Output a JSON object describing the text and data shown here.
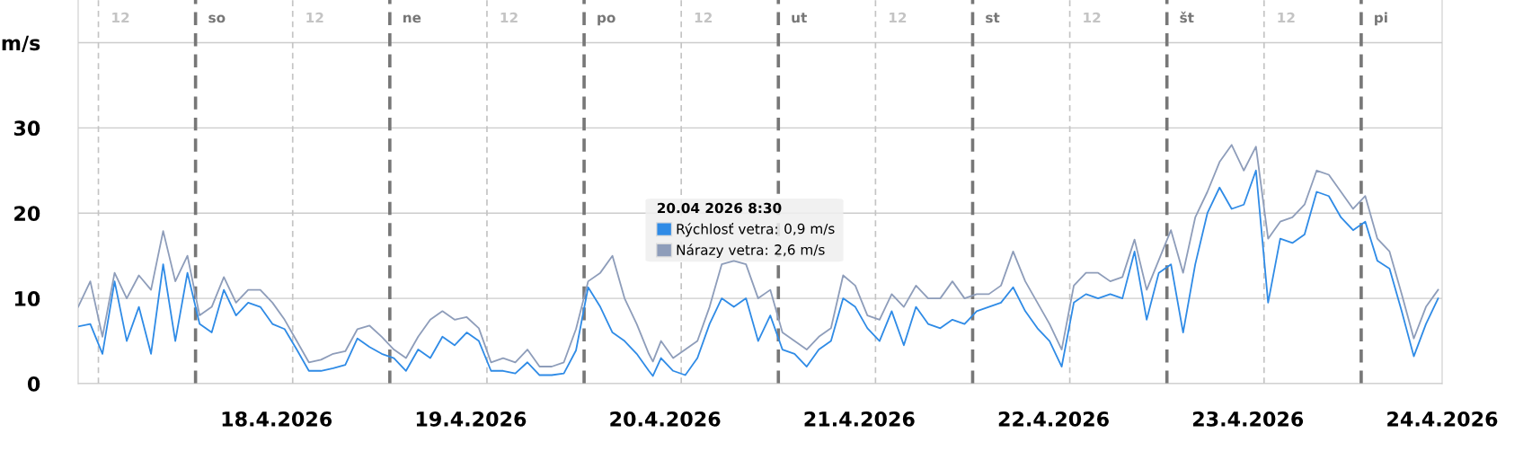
{
  "chart_data": {
    "type": "line",
    "x": [
      "2026-04-17T09:30",
      "2026-04-17T11:00",
      "2026-04-17T12:30",
      "2026-04-17T14:00",
      "2026-04-17T15:30",
      "2026-04-17T17:00",
      "2026-04-17T18:30",
      "2026-04-17T20:00",
      "2026-04-17T21:30",
      "2026-04-17T23:00",
      "2026-04-18T00:30",
      "2026-04-18T02:00",
      "2026-04-18T03:30",
      "2026-04-18T05:00",
      "2026-04-18T06:30",
      "2026-04-18T08:00",
      "2026-04-18T09:30",
      "2026-04-18T11:00",
      "2026-04-18T12:30",
      "2026-04-18T14:00",
      "2026-04-18T15:30",
      "2026-04-18T17:00",
      "2026-04-18T18:30",
      "2026-04-18T20:00",
      "2026-04-18T21:30",
      "2026-04-18T23:00",
      "2026-04-19T00:30",
      "2026-04-19T02:00",
      "2026-04-19T03:30",
      "2026-04-19T05:00",
      "2026-04-19T06:30",
      "2026-04-19T08:00",
      "2026-04-19T09:30",
      "2026-04-19T11:00",
      "2026-04-19T12:30",
      "2026-04-19T14:00",
      "2026-04-19T15:30",
      "2026-04-19T17:00",
      "2026-04-19T18:30",
      "2026-04-19T20:00",
      "2026-04-19T21:30",
      "2026-04-19T23:00",
      "2026-04-20T00:30",
      "2026-04-20T02:00",
      "2026-04-20T03:30",
      "2026-04-20T05:00",
      "2026-04-20T06:30",
      "2026-04-20T08:00",
      "2026-04-20T08:30",
      "2026-04-20T09:30",
      "2026-04-20T11:00",
      "2026-04-20T12:30",
      "2026-04-20T14:00",
      "2026-04-20T15:30",
      "2026-04-20T17:00",
      "2026-04-20T18:30",
      "2026-04-20T20:00",
      "2026-04-20T21:30",
      "2026-04-20T23:00",
      "2026-04-21T00:30",
      "2026-04-21T02:00",
      "2026-04-21T03:30",
      "2026-04-21T05:00",
      "2026-04-21T06:30",
      "2026-04-21T08:00",
      "2026-04-21T09:30",
      "2026-04-21T11:00",
      "2026-04-21T12:30",
      "2026-04-21T14:00",
      "2026-04-21T15:30",
      "2026-04-21T17:00",
      "2026-04-21T18:30",
      "2026-04-21T20:00",
      "2026-04-21T21:30",
      "2026-04-21T23:00",
      "2026-04-22T00:30",
      "2026-04-22T02:00",
      "2026-04-22T03:30",
      "2026-04-22T05:00",
      "2026-04-22T06:30",
      "2026-04-22T08:00",
      "2026-04-22T09:30",
      "2026-04-22T11:00",
      "2026-04-22T12:30",
      "2026-04-22T14:00",
      "2026-04-22T15:30",
      "2026-04-22T17:00",
      "2026-04-22T18:30",
      "2026-04-22T20:00",
      "2026-04-22T21:30",
      "2026-04-22T23:00",
      "2026-04-23T00:30",
      "2026-04-23T02:00",
      "2026-04-23T03:30",
      "2026-04-23T05:00",
      "2026-04-23T06:30",
      "2026-04-23T08:00",
      "2026-04-23T09:30",
      "2026-04-23T11:00",
      "2026-04-23T12:30",
      "2026-04-23T14:00",
      "2026-04-23T15:30",
      "2026-04-23T17:00",
      "2026-04-23T18:30",
      "2026-04-23T20:00",
      "2026-04-23T21:30",
      "2026-04-23T23:00",
      "2026-04-24T00:30",
      "2026-04-24T02:00",
      "2026-04-24T03:30",
      "2026-04-24T05:00",
      "2026-04-24T06:30",
      "2026-04-24T08:00",
      "2026-04-24T09:30"
    ],
    "series": [
      {
        "name": "Nárazy vetra:",
        "color": "#8e9dba",
        "values": [
          9,
          12,
          5.5,
          13,
          10,
          12.7,
          11,
          17.9,
          12,
          15,
          8,
          9,
          12.5,
          9.5,
          11,
          11,
          9.5,
          7.5,
          5,
          2.5,
          2.8,
          3.5,
          3.8,
          6.4,
          6.8,
          5.5,
          4,
          3,
          5.5,
          7.5,
          8.5,
          7.5,
          7.8,
          6.5,
          2.5,
          3,
          2.5,
          4,
          2,
          2,
          2.5,
          6.4,
          12,
          13,
          15,
          10,
          7,
          3.5,
          2.6,
          5,
          3,
          4,
          5,
          9,
          14,
          14.4,
          14,
          10,
          11,
          6,
          5,
          4,
          5.5,
          6.5,
          12.7,
          11.5,
          8,
          7.5,
          10.5,
          9,
          11.5,
          10,
          10,
          12,
          10,
          10.5,
          10.5,
          11.5,
          15.5,
          12,
          9.5,
          7,
          4,
          11.5,
          13,
          13,
          12,
          12.5,
          16.9,
          11,
          14.5,
          18,
          13,
          19.5,
          22.5,
          26,
          28,
          25,
          27.8,
          17,
          19,
          19.5,
          21,
          25,
          24.5,
          22.5,
          20.5,
          22,
          17,
          15.5,
          10.5,
          5.3,
          9,
          11
        ]
      },
      {
        "name": "Rýchlosť vetra:",
        "color": "#2f8be6",
        "values": [
          6.7,
          7,
          3.5,
          12,
          5,
          9,
          3.5,
          14,
          5,
          13,
          7,
          6,
          11,
          8,
          9.5,
          9,
          7,
          6.4,
          4,
          1.5,
          1.5,
          1.8,
          2.2,
          5.3,
          4.3,
          3.5,
          3,
          1.5,
          4,
          3,
          5.5,
          4.5,
          6,
          5,
          1.5,
          1.5,
          1.2,
          2.5,
          1,
          1,
          1.2,
          3.9,
          11.3,
          9,
          6,
          5,
          3.5,
          1.5,
          0.9,
          3,
          1.5,
          1,
          3,
          7,
          10,
          9,
          10,
          5,
          8,
          4,
          3.5,
          2,
          4,
          5,
          10,
          9,
          6.5,
          5,
          8.5,
          4.5,
          9,
          7,
          6.5,
          7.5,
          7,
          8.5,
          9,
          9.5,
          11.3,
          8.5,
          6.5,
          5,
          2,
          9.5,
          10.5,
          10,
          10.5,
          10,
          15.5,
          7.5,
          13,
          14,
          6,
          14,
          20,
          23,
          20.5,
          21,
          25,
          9.5,
          17,
          16.5,
          17.5,
          22.5,
          22,
          19.5,
          18,
          19,
          14.4,
          13.5,
          8.5,
          3.2,
          7,
          10
        ]
      }
    ],
    "annotations": [
      "2,6 m/s",
      "0,9 m/s"
    ],
    "legend": "center",
    "legend_title": "20.04 2026 8:30",
    "xlim": [
      "2026-04-17T09:30",
      "2026-04-24T10:00"
    ],
    "xticks": [
      {
        "value": "2026-04-18T10:00",
        "label": "18.4.2026"
      },
      {
        "value": "2026-04-19T10:00",
        "label": "19.4.2026"
      },
      {
        "value": "2026-04-20T10:00",
        "label": "20.4.2026"
      },
      {
        "value": "2026-04-21T10:00",
        "label": "21.4.2026"
      },
      {
        "value": "2026-04-22T10:00",
        "label": "22.4.2026"
      },
      {
        "value": "2026-04-23T10:00",
        "label": "23.4.2026"
      },
      {
        "value": "2026-04-24T10:00",
        "label": "24.4.2026"
      }
    ],
    "ylim": [
      0,
      45
    ],
    "yticks": [
      0,
      10,
      20,
      30,
      {
        "value": 40,
        "label": "m/s"
      }
    ],
    "grid": "y",
    "marker": "none",
    "line_style": "solid",
    "ref_lines": [
      {
        "axis": "x",
        "value": "2026-04-17T12:00",
        "label": "12",
        "color": "#c4c4c4",
        "line_style": "dashed"
      },
      {
        "axis": "x",
        "value": "2026-04-18T00:00",
        "label": "so",
        "color": "#777777",
        "line_style": "dashed"
      },
      {
        "axis": "x",
        "value": "2026-04-18T12:00",
        "label": "12",
        "color": "#c4c4c4",
        "line_style": "dashed"
      },
      {
        "axis": "x",
        "value": "2026-04-19T00:00",
        "label": "ne",
        "color": "#777777",
        "line_style": "dashed"
      },
      {
        "axis": "x",
        "value": "2026-04-19T12:00",
        "label": "12",
        "color": "#c4c4c4",
        "line_style": "dashed"
      },
      {
        "axis": "x",
        "value": "2026-04-20T00:00",
        "label": "po",
        "color": "#777777",
        "line_style": "dashed"
      },
      {
        "axis": "x",
        "value": "2026-04-20T12:00",
        "label": "12",
        "color": "#c4c4c4",
        "line_style": "dashed"
      },
      {
        "axis": "x",
        "value": "2026-04-21T00:00",
        "label": "ut",
        "color": "#777777",
        "line_style": "dashed"
      },
      {
        "axis": "x",
        "value": "2026-04-21T12:00",
        "label": "12",
        "color": "#c4c4c4",
        "line_style": "dashed"
      },
      {
        "axis": "x",
        "value": "2026-04-22T00:00",
        "label": "st",
        "color": "#777777",
        "line_style": "dashed"
      },
      {
        "axis": "x",
        "value": "2026-04-22T12:00",
        "label": "12",
        "color": "#c4c4c4",
        "line_style": "dashed"
      },
      {
        "axis": "x",
        "value": "2026-04-23T00:00",
        "label": "št",
        "color": "#777777",
        "line_style": "dashed"
      },
      {
        "axis": "x",
        "value": "2026-04-23T12:00",
        "label": "12",
        "color": "#c4c4c4",
        "line_style": "dashed"
      },
      {
        "axis": "x",
        "value": "2026-04-24T00:00",
        "label": "pi",
        "color": "#777777",
        "line_style": "dashed"
      }
    ]
  }
}
